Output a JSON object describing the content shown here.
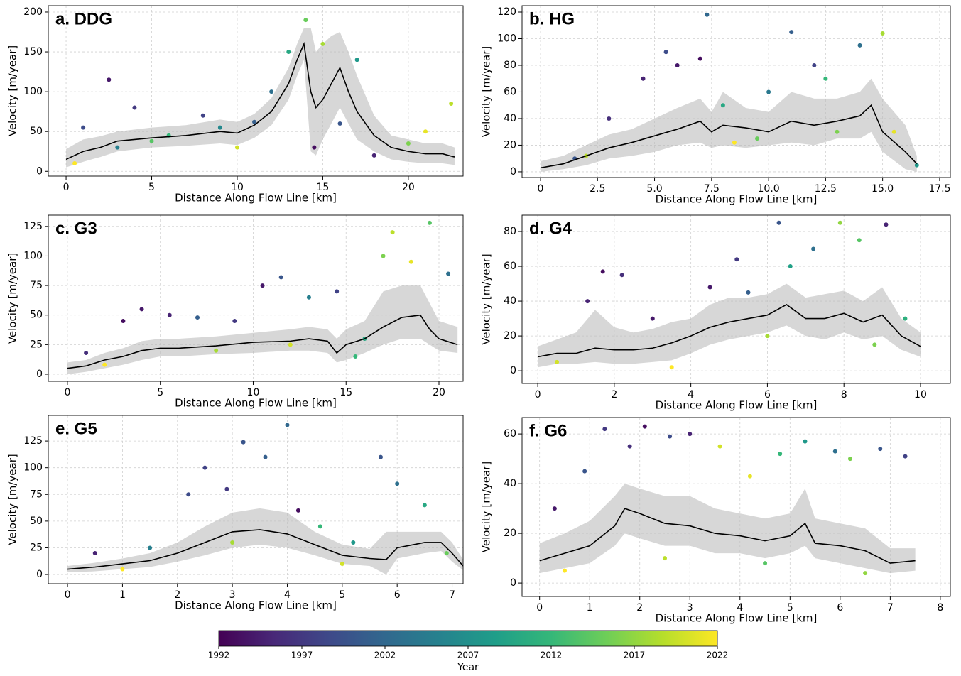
{
  "chart_data": [
    {
      "type": "scatter",
      "title": "a. DDG",
      "xlabel": "Distance Along Flow Line [km]",
      "ylabel": "Velocity [m/year]",
      "xlim": [
        -1.04,
        23.2
      ],
      "ylim": [
        -6,
        208
      ],
      "xticks": [
        0,
        5,
        10,
        15,
        20
      ],
      "yticks": [
        0,
        50,
        100,
        150,
        200
      ],
      "grid": true,
      "points": {
        "x": [
          1,
          2.5,
          3,
          4,
          6,
          8,
          10,
          12,
          13,
          14,
          14.5,
          15,
          16,
          17,
          18,
          20,
          21,
          22.5,
          0.5,
          5,
          9,
          11
        ],
        "values": [
          55,
          115,
          30,
          80,
          45,
          70,
          30,
          100,
          150,
          190,
          30,
          160,
          60,
          140,
          20,
          35,
          50,
          85,
          10,
          38,
          55,
          62
        ],
        "years": [
          1999,
          1994,
          2005,
          1997,
          2012,
          1998,
          2020,
          2003,
          2010,
          2015,
          1993,
          2018,
          2000,
          2008,
          1995,
          2016,
          2021,
          2019,
          2022,
          2014,
          2006,
          2001
        ]
      },
      "band": {
        "x": [
          0,
          1,
          2,
          3,
          5,
          7,
          9,
          10,
          11,
          12,
          13,
          13.5,
          13.9,
          14.3,
          14.6,
          15,
          15.5,
          16,
          16.5,
          17,
          18,
          19,
          20,
          21,
          22,
          22.7
        ],
        "low": [
          5,
          12,
          18,
          25,
          30,
          32,
          35,
          33,
          42,
          58,
          90,
          120,
          140,
          25,
          20,
          40,
          60,
          80,
          60,
          40,
          25,
          15,
          12,
          10,
          10,
          8
        ],
        "high": [
          28,
          40,
          44,
          50,
          55,
          58,
          65,
          62,
          72,
          92,
          130,
          160,
          180,
          180,
          150,
          160,
          170,
          175,
          150,
          120,
          70,
          45,
          40,
          35,
          35,
          30
        ]
      },
      "median": {
        "x": [
          0,
          1,
          2,
          3,
          5,
          7,
          9,
          10,
          11,
          12,
          13,
          13.5,
          13.9,
          14.3,
          14.6,
          15,
          15.5,
          16,
          16.5,
          17,
          18,
          19,
          20,
          21,
          22,
          22.7
        ],
        "values": [
          15,
          25,
          30,
          38,
          42,
          45,
          50,
          48,
          58,
          75,
          110,
          140,
          160,
          100,
          80,
          90,
          110,
          130,
          100,
          75,
          45,
          30,
          25,
          22,
          22,
          18
        ],
        "color": "#000000"
      }
    },
    {
      "type": "scatter",
      "title": "b. HG",
      "xlabel": "Distance Along Flow Line [km]",
      "ylabel": "Velocity [m/year]",
      "xlim": [
        -0.81,
        17.97
      ],
      "ylim": [
        -4.3,
        124.8
      ],
      "xticks": [
        0.0,
        {
          "value": 2.5,
          "label": "2.5"
        },
        {
          "value": 5,
          "label": "5.0"
        },
        {
          "value": 7.5,
          "label": "7.5"
        },
        {
          "value": 10,
          "label": "10.0"
        },
        {
          "value": 12.5,
          "label": "12.5"
        },
        {
          "value": 15,
          "label": "15.0"
        },
        {
          "value": 17.5,
          "label": "17.5"
        }
      ],
      "yticks": [
        0,
        20,
        40,
        60,
        80,
        100,
        120
      ],
      "grid": true,
      "points": {
        "x": [
          1.5,
          3,
          4.5,
          5.5,
          6,
          7,
          7.3,
          8,
          9.5,
          10,
          11,
          12,
          12.5,
          14,
          15,
          15.5,
          16.5,
          2,
          8.5,
          13
        ],
        "values": [
          10,
          40,
          70,
          90,
          80,
          85,
          118,
          50,
          25,
          60,
          105,
          80,
          70,
          95,
          104,
          30,
          5,
          12,
          22,
          30
        ],
        "years": [
          2000,
          1996,
          1995,
          1999,
          1994,
          1993,
          2002,
          2010,
          2015,
          2004,
          2001,
          1998,
          2012,
          2003,
          2018,
          2021,
          2008,
          2019,
          2022,
          2016
        ]
      },
      "band": {
        "x": [
          0,
          1,
          2,
          3,
          4,
          5,
          6,
          7,
          7.5,
          8,
          9,
          10,
          11,
          12,
          13,
          14,
          14.5,
          15,
          16,
          16.5
        ],
        "low": [
          0,
          2,
          5,
          10,
          12,
          15,
          20,
          22,
          18,
          20,
          18,
          20,
          22,
          20,
          25,
          25,
          30,
          15,
          2,
          0
        ],
        "high": [
          8,
          12,
          20,
          28,
          32,
          40,
          48,
          55,
          45,
          60,
          48,
          45,
          60,
          55,
          55,
          60,
          70,
          55,
          35,
          12
        ]
      },
      "median": {
        "x": [
          0,
          1,
          2,
          3,
          4,
          5,
          6,
          7,
          7.5,
          8,
          9,
          10,
          11,
          12,
          13,
          14,
          14.5,
          15,
          16,
          16.5
        ],
        "values": [
          3,
          6,
          12,
          18,
          22,
          27,
          32,
          38,
          30,
          35,
          33,
          30,
          38,
          35,
          38,
          42,
          50,
          30,
          15,
          6
        ],
        "color": "#000000"
      }
    },
    {
      "type": "scatter",
      "title": "c. G3",
      "xlabel": "Distance Along Flow Line [km]",
      "ylabel": "Velocity [m/year]",
      "xlim": [
        -1.03,
        21.3
      ],
      "ylim": [
        -6,
        134.5
      ],
      "xticks": [
        0,
        5,
        10,
        15,
        20
      ],
      "yticks": [
        0,
        25,
        50,
        75,
        100,
        125
      ],
      "grid": true,
      "points": {
        "x": [
          1,
          3,
          4,
          5.5,
          7,
          9,
          10.5,
          11.5,
          13,
          14.5,
          16,
          17,
          17.5,
          18.5,
          19.5,
          20.5,
          2,
          8,
          12,
          15.5
        ],
        "values": [
          18,
          45,
          55,
          50,
          48,
          45,
          75,
          82,
          65,
          70,
          30,
          100,
          120,
          95,
          128,
          85,
          8,
          20,
          25,
          15
        ],
        "years": [
          1996,
          1993,
          1994,
          1995,
          2001,
          1997,
          1994,
          2000,
          2005,
          1998,
          2010,
          2016,
          2019,
          2021,
          2014,
          2003,
          2022,
          2018,
          2020,
          2012
        ]
      },
      "band": {
        "x": [
          0,
          1,
          2,
          3,
          4,
          5,
          6,
          8,
          10,
          12,
          13,
          14,
          14.5,
          15,
          16,
          17,
          18,
          19,
          19.5,
          20,
          21
        ],
        "low": [
          0,
          2,
          5,
          8,
          12,
          15,
          15,
          17,
          18,
          20,
          20,
          18,
          10,
          12,
          18,
          25,
          30,
          30,
          25,
          20,
          18
        ],
        "high": [
          10,
          12,
          18,
          22,
          28,
          30,
          30,
          32,
          35,
          38,
          40,
          38,
          30,
          38,
          45,
          70,
          75,
          75,
          60,
          45,
          40
        ]
      },
      "median": {
        "x": [
          0,
          1,
          2,
          3,
          4,
          5,
          6,
          8,
          10,
          12,
          13,
          14,
          14.5,
          15,
          16,
          17,
          18,
          19,
          19.5,
          20,
          21
        ],
        "values": [
          5,
          7,
          12,
          15,
          20,
          22,
          22,
          24,
          27,
          28,
          30,
          28,
          18,
          25,
          30,
          40,
          48,
          50,
          38,
          30,
          25
        ],
        "color": "#000000"
      }
    },
    {
      "type": "scatter",
      "title": "d. G4",
      "xlabel": "Distance Along Flow Line [km]",
      "ylabel": "Velocity [m/year]",
      "xlim": [
        -0.41,
        10.78
      ],
      "ylim": [
        -7.3,
        89.4
      ],
      "xticks": [
        0,
        2,
        4,
        6,
        8,
        10
      ],
      "yticks": [
        0,
        20,
        40,
        60,
        80
      ],
      "grid": true,
      "points": {
        "x": [
          1.3,
          1.7,
          2.2,
          3,
          4.5,
          5.2,
          5.5,
          6.3,
          6.6,
          7.2,
          7.9,
          8.4,
          9.1,
          9.6,
          0.5,
          3.5,
          6,
          8.8
        ],
        "values": [
          40,
          57,
          55,
          30,
          48,
          64,
          45,
          85,
          60,
          70,
          85,
          75,
          84,
          30,
          5,
          2,
          20,
          15
        ],
        "years": [
          1995,
          1993,
          1996,
          1994,
          1994,
          1997,
          2001,
          2000,
          2009,
          2003,
          2017,
          2014,
          1995,
          2011,
          2020,
          2022,
          2018,
          2016
        ]
      },
      "band": {
        "x": [
          0,
          0.5,
          1,
          1.5,
          2,
          2.5,
          3,
          3.5,
          4,
          4.5,
          5,
          5.5,
          6,
          6.5,
          7,
          7.5,
          8,
          8.5,
          9,
          9.5,
          10
        ],
        "low": [
          2,
          4,
          4,
          5,
          4,
          4,
          5,
          6,
          10,
          15,
          18,
          20,
          22,
          26,
          20,
          18,
          22,
          18,
          20,
          12,
          8
        ],
        "high": [
          14,
          18,
          22,
          35,
          25,
          22,
          24,
          28,
          30,
          38,
          42,
          42,
          44,
          50,
          42,
          44,
          46,
          40,
          48,
          30,
          22
        ]
      },
      "median": {
        "x": [
          0,
          0.5,
          1,
          1.5,
          2,
          2.5,
          3,
          3.5,
          4,
          4.5,
          5,
          5.5,
          6,
          6.5,
          7,
          7.5,
          8,
          8.5,
          9,
          9.5,
          10
        ],
        "values": [
          8,
          10,
          10,
          13,
          12,
          12,
          13,
          16,
          20,
          25,
          28,
          30,
          32,
          38,
          30,
          30,
          33,
          28,
          32,
          20,
          14
        ],
        "color": "#000000"
      }
    },
    {
      "type": "scatter",
      "title": "e. G5",
      "xlabel": "Distance Along Flow Line [km]",
      "ylabel": "Velocity [m/year]",
      "xlim": [
        -0.35,
        7.2
      ],
      "ylim": [
        -8.6,
        149
      ],
      "xticks": [
        0,
        1,
        2,
        3,
        4,
        5,
        6,
        7
      ],
      "yticks": [
        0,
        25,
        50,
        75,
        100,
        125
      ],
      "grid": true,
      "points": {
        "x": [
          0.5,
          1.5,
          2.2,
          2.5,
          2.9,
          3.2,
          3.6,
          4.0,
          4.2,
          4.6,
          5.2,
          5.7,
          6.0,
          6.5,
          6.9,
          1.0,
          3.0,
          5.0
        ],
        "values": [
          20,
          25,
          75,
          100,
          80,
          124,
          110,
          140,
          60,
          45,
          30,
          110,
          85,
          65,
          20,
          5,
          30,
          10
        ],
        "years": [
          1995,
          2005,
          1999,
          1998,
          1997,
          2000,
          2001,
          2002,
          1993,
          2012,
          2008,
          2000,
          2003,
          2010,
          2015,
          2022,
          2018,
          2020
        ]
      },
      "band": {
        "x": [
          0,
          0.5,
          1,
          1.5,
          2,
          2.5,
          3,
          3.5,
          4,
          4.5,
          5,
          5.5,
          5.8,
          6,
          6.5,
          6.8,
          7,
          7.2
        ],
        "low": [
          2,
          3,
          5,
          7,
          12,
          18,
          25,
          28,
          25,
          18,
          10,
          8,
          0,
          15,
          20,
          22,
          12,
          4
        ],
        "high": [
          8,
          11,
          15,
          20,
          30,
          45,
          58,
          62,
          58,
          40,
          28,
          24,
          40,
          40,
          40,
          40,
          30,
          14
        ]
      },
      "median": {
        "x": [
          0,
          0.5,
          1,
          1.5,
          2,
          2.5,
          3,
          3.5,
          4,
          4.5,
          5,
          5.5,
          5.8,
          6,
          6.5,
          6.8,
          7,
          7.2
        ],
        "values": [
          5,
          7,
          10,
          13,
          20,
          30,
          40,
          42,
          38,
          28,
          18,
          15,
          14,
          25,
          30,
          30,
          20,
          8
        ],
        "color": "#000000"
      }
    },
    {
      "type": "scatter",
      "title": "f. G6",
      "xlabel": "Distance Along Flow Line [km]",
      "ylabel": "Velocity [m/year]",
      "xlim": [
        -0.35,
        8.2
      ],
      "ylim": [
        -5.4,
        66.6
      ],
      "xticks": [
        0,
        1,
        2,
        3,
        4,
        5,
        6,
        7,
        8
      ],
      "yticks": [
        0,
        20,
        40,
        60
      ],
      "grid": true,
      "points": {
        "x": [
          0.3,
          0.9,
          1.3,
          1.8,
          2.1,
          2.6,
          3.0,
          3.6,
          4.2,
          4.8,
          5.3,
          5.9,
          6.2,
          6.8,
          7.3,
          0.5,
          2.5,
          4.5,
          6.5
        ],
        "values": [
          30,
          45,
          62,
          55,
          63,
          59,
          60,
          55,
          43,
          52,
          57,
          53,
          50,
          54,
          51,
          5,
          10,
          8,
          4
        ],
        "years": [
          1994,
          2000,
          1997,
          1996,
          1993,
          1999,
          1995,
          2020,
          2021,
          2012,
          2008,
          2003,
          2016,
          2000,
          1998,
          2022,
          2019,
          2014,
          2017
        ]
      },
      "band": {
        "x": [
          0,
          0.5,
          1,
          1.5,
          1.7,
          2,
          2.5,
          3,
          3.5,
          4,
          4.5,
          5,
          5.3,
          5.5,
          6,
          6.5,
          7,
          7.5
        ],
        "low": [
          4,
          6,
          8,
          15,
          20,
          18,
          15,
          15,
          12,
          12,
          10,
          12,
          15,
          10,
          8,
          6,
          4,
          5
        ],
        "high": [
          16,
          20,
          25,
          35,
          40,
          38,
          35,
          35,
          30,
          28,
          26,
          28,
          38,
          26,
          24,
          22,
          14,
          14
        ]
      },
      "median": {
        "x": [
          0,
          0.5,
          1,
          1.5,
          1.7,
          2,
          2.5,
          3,
          3.5,
          4,
          4.5,
          5,
          5.3,
          5.5,
          6,
          6.5,
          7,
          7.5
        ],
        "values": [
          9,
          12,
          15,
          23,
          30,
          28,
          24,
          23,
          20,
          19,
          17,
          19,
          24,
          16,
          15,
          13,
          8,
          9
        ],
        "color": "#000000"
      }
    },
    {
      "type": "colorbar",
      "label": "Year",
      "colormap": "viridis",
      "clim": [
        1992,
        2022
      ],
      "ticks": [
        1992,
        1997,
        2002,
        2007,
        2012,
        2017,
        2022
      ]
    }
  ]
}
